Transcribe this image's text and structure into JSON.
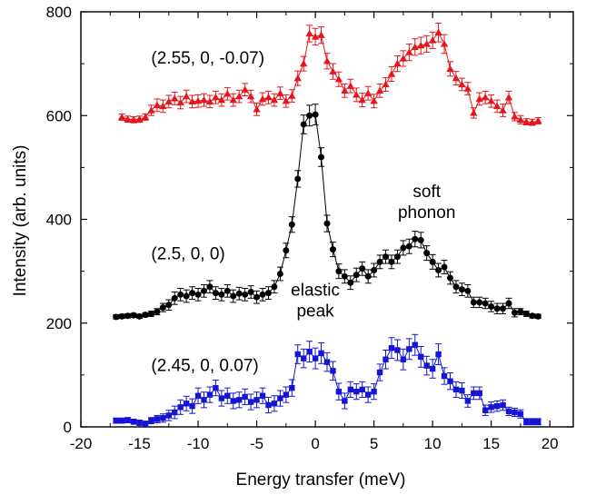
{
  "chart_data": {
    "type": "scatter",
    "xlabel": "Energy transfer (meV)",
    "ylabel": "Intensity (arb. units)",
    "xlim": [
      -20,
      22
    ],
    "ylim": [
      0,
      800
    ],
    "xticks": [
      -20,
      -15,
      -10,
      -5,
      0,
      5,
      10,
      15,
      20
    ],
    "yticks": [
      0,
      200,
      400,
      600,
      800
    ],
    "grid": false,
    "legend": "none",
    "annotations": [
      {
        "text": "(2.55, 0, -0.07)",
        "x": -14.0,
        "y": 700
      },
      {
        "text": "(2.5, 0, 0)",
        "x": -14.0,
        "y": 323
      },
      {
        "text": "(2.45, 0, 0.07)",
        "x": -14.0,
        "y": 108
      },
      {
        "text": "soft",
        "x": 9.5,
        "y": 443
      },
      {
        "text": "phonon",
        "x": 9.5,
        "y": 403
      },
      {
        "text": "elastic",
        "x": 0.0,
        "y": 253
      },
      {
        "text": "peak",
        "x": 0.0,
        "y": 213
      }
    ],
    "series": [
      {
        "color": "#e8141c",
        "marker": "triangle",
        "x": [
          -16.5,
          -16.0,
          -15.5,
          -15.0,
          -14.5,
          -14.0,
          -13.5,
          -13.0,
          -12.5,
          -12.0,
          -11.5,
          -11.0,
          -10.5,
          -10.0,
          -9.5,
          -9.0,
          -8.5,
          -8.0,
          -7.5,
          -7.0,
          -6.5,
          -6.0,
          -5.5,
          -5.0,
          -4.5,
          -4.0,
          -3.5,
          -3.0,
          -2.5,
          -2.0,
          -1.5,
          -1.0,
          -0.5,
          0.0,
          0.5,
          1.0,
          1.5,
          2.0,
          2.5,
          3.0,
          3.5,
          4.0,
          4.5,
          5.0,
          5.5,
          6.0,
          6.5,
          7.0,
          7.5,
          8.0,
          8.5,
          9.0,
          9.5,
          10.0,
          10.5,
          11.0,
          11.5,
          12.0,
          12.5,
          13.0,
          13.5,
          14.0,
          14.5,
          15.0,
          15.5,
          16.0,
          16.5,
          17.0,
          17.5,
          18.0,
          18.5,
          19.0
        ],
        "y": [
          597,
          593,
          592,
          593,
          597,
          610,
          620,
          618,
          627,
          633,
          625,
          637,
          627,
          628,
          630,
          627,
          635,
          630,
          642,
          630,
          637,
          650,
          637,
          612,
          632,
          635,
          630,
          643,
          628,
          638,
          672,
          700,
          758,
          752,
          755,
          705,
          685,
          670,
          648,
          657,
          640,
          630,
          643,
          628,
          648,
          660,
          680,
          700,
          710,
          722,
          732,
          735,
          738,
          745,
          760,
          738,
          690,
          672,
          660,
          652,
          605,
          632,
          635,
          628,
          618,
          610,
          635,
          598,
          592,
          588,
          587,
          590
        ],
        "err": [
          6,
          6,
          6,
          6,
          6,
          10,
          12,
          12,
          12,
          12,
          12,
          12,
          12,
          12,
          12,
          12,
          12,
          12,
          12,
          12,
          12,
          12,
          12,
          12,
          12,
          12,
          12,
          12,
          12,
          12,
          14,
          14,
          16,
          16,
          16,
          15,
          15,
          14,
          13,
          13,
          13,
          13,
          13,
          13,
          13,
          13,
          14,
          15,
          15,
          16,
          16,
          16,
          16,
          16,
          18,
          18,
          14,
          13,
          12,
          12,
          10,
          12,
          12,
          12,
          12,
          12,
          12,
          8,
          8,
          6,
          6,
          6
        ]
      },
      {
        "color": "#000000",
        "marker": "circle",
        "x": [
          -17.0,
          -16.5,
          -16.0,
          -15.5,
          -15.0,
          -14.5,
          -14.0,
          -13.5,
          -13.0,
          -12.5,
          -12.0,
          -11.5,
          -11.0,
          -10.5,
          -10.0,
          -9.5,
          -9.0,
          -8.5,
          -8.0,
          -7.5,
          -7.0,
          -6.5,
          -6.0,
          -5.5,
          -5.0,
          -4.5,
          -4.0,
          -3.5,
          -3.0,
          -2.5,
          -2.0,
          -1.5,
          -1.0,
          -0.5,
          0.0,
          0.5,
          1.0,
          1.5,
          2.0,
          2.5,
          3.0,
          3.5,
          4.0,
          4.5,
          5.0,
          5.5,
          6.0,
          6.5,
          7.0,
          7.5,
          8.0,
          8.5,
          9.0,
          9.5,
          10.0,
          10.5,
          11.0,
          11.5,
          12.0,
          12.5,
          13.0,
          13.5,
          14.0,
          14.5,
          15.0,
          15.5,
          16.0,
          16.5,
          17.0,
          17.5,
          18.0,
          18.5,
          19.0
        ],
        "y": [
          212,
          213,
          214,
          215,
          213,
          216,
          218,
          222,
          230,
          235,
          248,
          255,
          252,
          258,
          255,
          262,
          270,
          258,
          255,
          262,
          252,
          257,
          255,
          260,
          250,
          255,
          258,
          270,
          295,
          340,
          390,
          478,
          583,
          600,
          602,
          520,
          392,
          342,
          300,
          290,
          278,
          293,
          305,
          290,
          302,
          318,
          328,
          318,
          328,
          345,
          348,
          362,
          360,
          335,
          318,
          302,
          308,
          287,
          270,
          265,
          262,
          240,
          240,
          238,
          232,
          228,
          228,
          238,
          220,
          222,
          218,
          214,
          213
        ],
        "err": [
          4,
          4,
          4,
          4,
          4,
          4,
          5,
          6,
          8,
          10,
          12,
          12,
          12,
          12,
          12,
          12,
          12,
          12,
          12,
          12,
          12,
          12,
          12,
          12,
          12,
          12,
          12,
          12,
          13,
          14,
          15,
          16,
          18,
          20,
          20,
          18,
          16,
          14,
          14,
          13,
          13,
          13,
          13,
          13,
          13,
          13,
          13,
          13,
          13,
          14,
          14,
          15,
          15,
          14,
          14,
          13,
          13,
          12,
          12,
          12,
          12,
          10,
          10,
          10,
          10,
          10,
          10,
          10,
          8,
          6,
          5,
          4,
          4
        ]
      },
      {
        "color": "#1414d4",
        "marker": "square",
        "x": [
          -17.0,
          -16.5,
          -16.0,
          -15.5,
          -15.0,
          -14.5,
          -14.0,
          -13.5,
          -13.0,
          -12.5,
          -12.0,
          -11.5,
          -11.0,
          -10.5,
          -10.0,
          -9.5,
          -9.0,
          -8.5,
          -8.0,
          -7.5,
          -7.0,
          -6.5,
          -6.0,
          -5.5,
          -5.0,
          -4.5,
          -4.0,
          -3.5,
          -3.0,
          -2.5,
          -2.0,
          -1.5,
          -1.0,
          -0.5,
          0.0,
          0.5,
          1.0,
          1.5,
          2.0,
          2.5,
          3.0,
          3.5,
          4.0,
          4.5,
          5.0,
          5.5,
          6.0,
          6.5,
          7.0,
          7.5,
          8.0,
          8.5,
          9.0,
          9.5,
          10.0,
          10.5,
          11.0,
          11.5,
          12.0,
          12.5,
          13.0,
          13.5,
          14.0,
          14.5,
          15.0,
          15.5,
          16.0,
          16.5,
          17.0,
          17.5,
          18.0,
          18.5,
          19.0
        ],
        "y": [
          12,
          12,
          13,
          10,
          8,
          6,
          12,
          15,
          17,
          22,
          28,
          38,
          45,
          40,
          60,
          52,
          62,
          75,
          55,
          60,
          50,
          52,
          58,
          48,
          52,
          60,
          42,
          45,
          55,
          62,
          75,
          140,
          132,
          145,
          132,
          142,
          125,
          108,
          68,
          50,
          72,
          68,
          72,
          62,
          68,
          105,
          130,
          152,
          148,
          130,
          150,
          158,
          135,
          118,
          112,
          140,
          98,
          88,
          72,
          70,
          50,
          65,
          65,
          32,
          38,
          40,
          42,
          30,
          28,
          25,
          10,
          10,
          10
        ],
        "err": [
          5,
          5,
          5,
          5,
          5,
          5,
          6,
          7,
          8,
          10,
          12,
          14,
          14,
          14,
          15,
          15,
          15,
          15,
          15,
          15,
          15,
          15,
          15,
          15,
          15,
          15,
          15,
          15,
          15,
          15,
          16,
          18,
          18,
          20,
          20,
          20,
          18,
          18,
          16,
          15,
          15,
          15,
          15,
          15,
          15,
          16,
          18,
          20,
          20,
          20,
          20,
          20,
          20,
          18,
          18,
          20,
          16,
          16,
          15,
          15,
          12,
          12,
          12,
          10,
          10,
          10,
          10,
          8,
          8,
          8,
          6,
          6,
          6
        ]
      }
    ]
  }
}
